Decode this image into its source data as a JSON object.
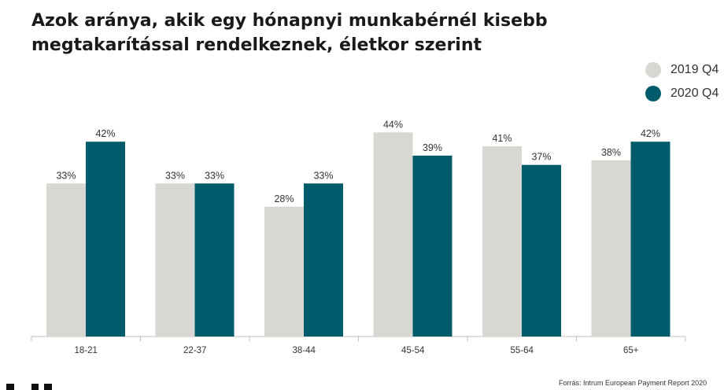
{
  "title": "Azok aránya, akik egy hónapnyi munkabérnél kisebb megtakarítással rendelkeznek, életkor szerint",
  "source": "Forrás: Intrum European Payment Report 2020",
  "colors": {
    "series_2019": "#d9d7d2",
    "series_2020": "#005c6a",
    "axis": "#bfbfbf",
    "text": "#333333"
  },
  "chart_data": {
    "type": "bar",
    "title": "Azok aránya, akik egy hónapnyi munkabérnél kisebb megtakarítással rendelkeznek, életkor szerint",
    "xlabel": "",
    "ylabel": "",
    "categories": [
      "18-21",
      "22-37",
      "38-44",
      "45-54",
      "55-64",
      "65+"
    ],
    "series": [
      {
        "name": "2019 Q4",
        "values": [
          33,
          33,
          28,
          44,
          41,
          38
        ],
        "labels": [
          "33%",
          "33%",
          "28%",
          "44%",
          "41%",
          "38%"
        ],
        "color": "#d9d7d2"
      },
      {
        "name": "2020 Q4",
        "values": [
          42,
          33,
          33,
          39,
          37,
          42
        ],
        "labels": [
          "42%",
          "33%",
          "33%",
          "39%",
          "37%",
          "42%"
        ],
        "color": "#005c6a"
      }
    ],
    "ylim": [
      0,
      50
    ],
    "grid": false,
    "legend": "top-right"
  }
}
